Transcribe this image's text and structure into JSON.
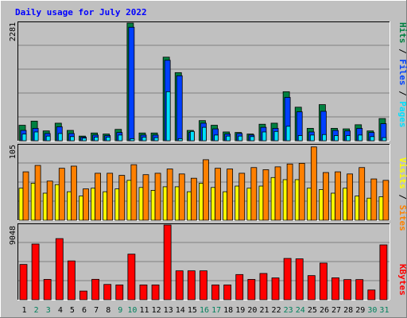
{
  "title": "Daily usage for July 2022",
  "colors": {
    "background": "#c0c0c0",
    "title": "#0000ff",
    "hits": "#008040",
    "files": "#0040ff",
    "pages": "#00e0ff",
    "visits": "#ffff00",
    "sites": "#ff8000",
    "kbytes": "#ff0000",
    "weekend_day": "#00805c",
    "weekday_day": "#000000"
  },
  "chart_data": [
    {
      "type": "bar",
      "title": "Daily usage for July 2022",
      "ylabel": {
        "pages": "Pages",
        "files": "Files",
        "hits": "Hits"
      },
      "max_label": "2281",
      "ylim": [
        0,
        2281
      ],
      "grid": true,
      "categories": [
        "1",
        "2",
        "3",
        "4",
        "5",
        "6",
        "7",
        "8",
        "9",
        "10",
        "11",
        "12",
        "13",
        "14",
        "15",
        "16",
        "17",
        "18",
        "19",
        "20",
        "21",
        "22",
        "23",
        "24",
        "25",
        "26",
        "27",
        "28",
        "29",
        "30",
        "31"
      ],
      "series": [
        {
          "name": "Hits",
          "values": [
            300,
            380,
            190,
            340,
            200,
            90,
            150,
            130,
            220,
            2281,
            150,
            150,
            1620,
            1320,
            200,
            390,
            300,
            170,
            160,
            130,
            320,
            340,
            950,
            650,
            240,
            700,
            240,
            230,
            310,
            190,
            430
          ]
        },
        {
          "name": "Files",
          "values": [
            200,
            240,
            140,
            270,
            140,
            70,
            110,
            100,
            160,
            2200,
            110,
            110,
            1560,
            1260,
            160,
            340,
            230,
            130,
            140,
            110,
            260,
            240,
            840,
            560,
            170,
            570,
            200,
            190,
            240,
            160,
            330
          ]
        },
        {
          "name": "Pages",
          "values": [
            130,
            170,
            90,
            140,
            80,
            50,
            70,
            70,
            110,
            40,
            70,
            60,
            950,
            40,
            180,
            260,
            110,
            90,
            90,
            80,
            170,
            180,
            280,
            100,
            110,
            120,
            100,
            100,
            110,
            80,
            60
          ]
        }
      ]
    },
    {
      "type": "bar",
      "ylabel": {
        "visits": "Visits",
        "sites": "Sites"
      },
      "max_label": "105",
      "ylim": [
        0,
        105
      ],
      "grid": true,
      "categories": [
        "1",
        "2",
        "3",
        "4",
        "5",
        "6",
        "7",
        "8",
        "9",
        "10",
        "11",
        "12",
        "13",
        "14",
        "15",
        "16",
        "17",
        "18",
        "19",
        "20",
        "21",
        "22",
        "23",
        "24",
        "25",
        "26",
        "27",
        "28",
        "29",
        "30",
        "31"
      ],
      "series": [
        {
          "name": "Visits",
          "values": [
            45,
            52,
            38,
            50,
            40,
            34,
            45,
            40,
            44,
            56,
            46,
            42,
            47,
            47,
            40,
            52,
            46,
            40,
            48,
            45,
            48,
            60,
            57,
            57,
            45,
            43,
            38,
            45,
            34,
            31,
            33
          ]
        },
        {
          "name": "Sites",
          "values": [
            68,
            77,
            55,
            73,
            76,
            44,
            66,
            66,
            63,
            78,
            64,
            66,
            72,
            65,
            59,
            85,
            73,
            72,
            66,
            74,
            71,
            75,
            79,
            80,
            103,
            67,
            68,
            65,
            74,
            58,
            56
          ]
        }
      ]
    },
    {
      "type": "bar",
      "ylabel": "KBytes",
      "max_label": "9048",
      "ylim": [
        0,
        9048
      ],
      "grid": true,
      "categories": [
        "1",
        "2",
        "3",
        "4",
        "5",
        "6",
        "7",
        "8",
        "9",
        "10",
        "11",
        "12",
        "13",
        "14",
        "15",
        "16",
        "17",
        "18",
        "19",
        "20",
        "21",
        "22",
        "23",
        "24",
        "25",
        "26",
        "27",
        "28",
        "29",
        "30",
        "31"
      ],
      "series": [
        {
          "name": "KBytes",
          "values": [
            4270,
            6740,
            2460,
            7400,
            4700,
            1050,
            2470,
            1850,
            1790,
            5520,
            1790,
            1790,
            9048,
            3500,
            3500,
            3500,
            1790,
            1790,
            3050,
            2460,
            3180,
            2640,
            5000,
            4950,
            2920,
            4440,
            2650,
            2440,
            2440,
            1180,
            6640
          ]
        }
      ]
    }
  ]
}
